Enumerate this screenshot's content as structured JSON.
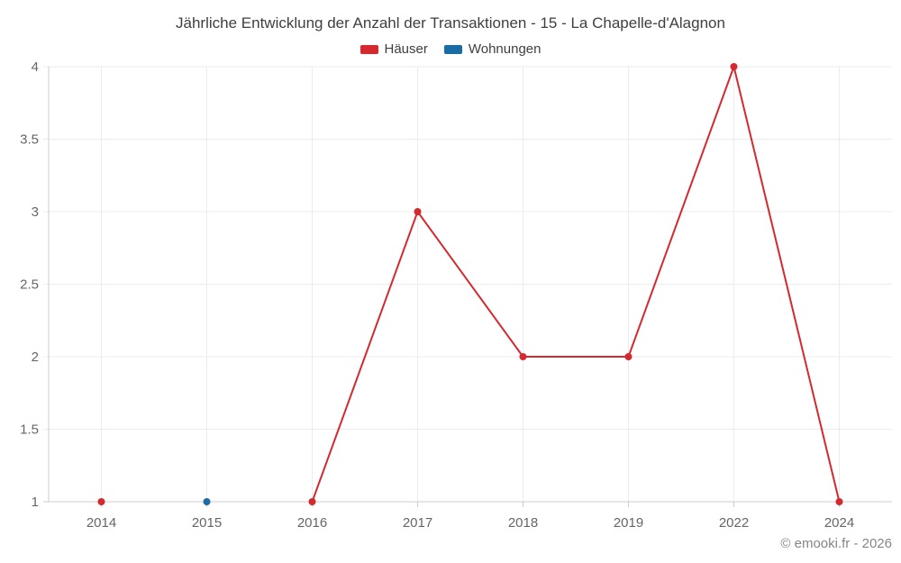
{
  "watermark": "© emooki.fr - 2026",
  "colors": {
    "haeuser_red": "#d4292e",
    "wohnungen_blue": "#1a6ca6",
    "grid": "#ececec",
    "axis": "#cccccc",
    "tick_label": "#666666",
    "title_text": "#3f3f3f",
    "watermark_text": "#858585"
  },
  "chart_data": {
    "type": "line",
    "title": "Jährliche Entwicklung der Anzahl der Transaktionen - 15 - La Chapelle-d'Alagnon",
    "categories": [
      "2014",
      "2015",
      "2016",
      "2017",
      "2018",
      "2019",
      "2022",
      "2024"
    ],
    "series": [
      {
        "name": "Häuser",
        "color": "#d4292e",
        "values": [
          1,
          null,
          1,
          3,
          2,
          2,
          4,
          1
        ]
      },
      {
        "name": "Wohnungen",
        "color": "#1a6ca6",
        "values": [
          null,
          1,
          null,
          null,
          null,
          null,
          null,
          null
        ]
      }
    ],
    "xlabel": "",
    "ylabel": "",
    "ylim": [
      1,
      4
    ],
    "ytick_step": 0.5,
    "yticks": [
      1,
      1.5,
      2,
      2.5,
      3,
      3.5,
      4
    ],
    "grid": true,
    "legend_position": "top",
    "marker_radius": 4,
    "line_width": 2
  }
}
